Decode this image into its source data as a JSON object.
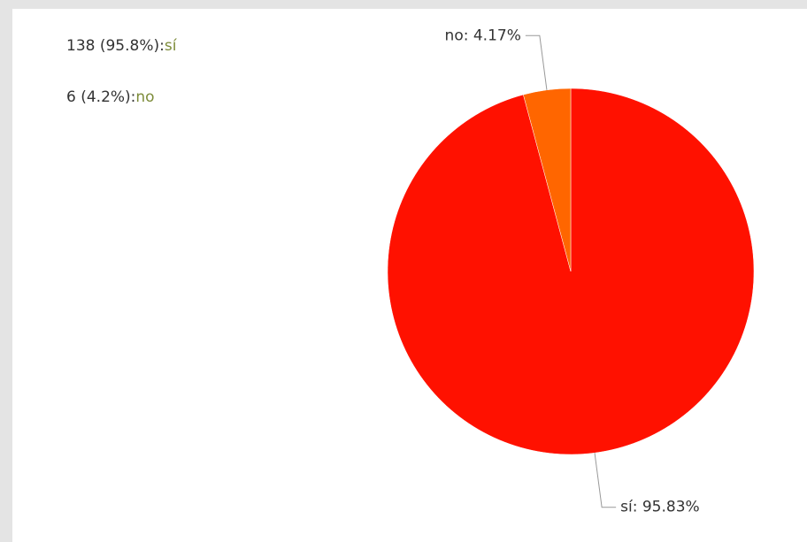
{
  "chart_data": {
    "type": "pie",
    "categories": [
      "sí",
      "no"
    ],
    "values": [
      95.83,
      4.17
    ],
    "value_labels": [
      "sí: 95.83%",
      "no: 4.17%"
    ],
    "colors": [
      "#ff1100",
      "#ff6600"
    ],
    "legend_labels": [
      "138 (95.8%):",
      "6 (4.2%):"
    ]
  }
}
